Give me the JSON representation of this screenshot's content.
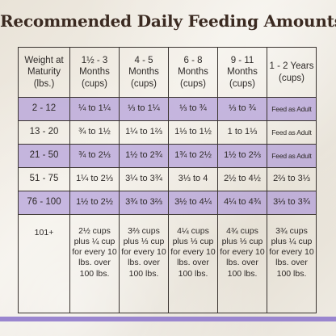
{
  "title": "Recommended Daily Feeding Amounts:",
  "colors": {
    "band": "#a891d7",
    "stripe": "#9a86cf",
    "title": "#3b2a21"
  },
  "headers": [
    "Weight at Maturity (lbs.)",
    "1½ - 3 Months (cups)",
    "4 - 5 Months (cups)",
    "6 - 8 Months (cups)",
    "9 - 11 Months (cups)",
    "1 - 2 Years (cups)"
  ],
  "rows": [
    [
      "2 - 12",
      "¼ to 1¼",
      "⅓ to 1¼",
      "⅓ to ¾",
      "⅓ to ¾",
      "Feed as Adult"
    ],
    [
      "13 - 20",
      "¾ to 1½",
      "1¼ to 1⅔",
      "1⅓ to 1½",
      "1 to 1⅓",
      "Feed as Adult"
    ],
    [
      "21 - 50",
      "¾ to 2⅓",
      "1½ to 2¾",
      "1¾ to 2½",
      "1½ to 2⅔",
      "Feed as Adult"
    ],
    [
      "51 - 75",
      "1¼ to 2⅓",
      "3¼ to 3¾",
      "3⅓ to 4",
      "2½ to 4½",
      "2⅔ to 3⅓"
    ],
    [
      "76 - 100",
      "1½ to 2½",
      "3¾ to 3⅔",
      "3½ to 4¼",
      "4¼ to 4¾",
      "3⅓ to 3¾"
    ],
    [
      "101+",
      "2½ cups plus ¼ cup for every 10 lbs. over 100 lbs.",
      "3⅔ cups plus ⅓ cup for every 10 lbs. over 100 lbs.",
      "4¼ cups plus ⅓ cup for every 10 lbs. over 100 lbs.",
      "4¾ cups plus ⅓ cup for every 10 lbs. over 100 lbs.",
      "3¾ cups plus ¼ cup for every 10 lbs. over 100 lbs."
    ]
  ]
}
